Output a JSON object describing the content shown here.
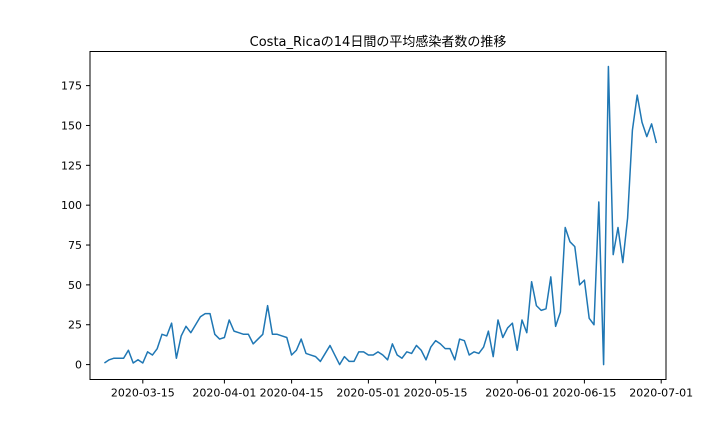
{
  "chart_data": {
    "type": "line",
    "title": "Costa_Ricaの14日間の平均感染者数の推移",
    "xlabel": "",
    "ylabel": "",
    "x_start": "2020-03-07",
    "x_range": [
      "2020-03-04",
      "2020-07-02"
    ],
    "ylim": [
      -9.35,
      196.4
    ],
    "grid": false,
    "legend": "none",
    "x_ticks": [
      {
        "date": "2020-03-15",
        "label": "2020-03-15"
      },
      {
        "date": "2020-04-01",
        "label": "2020-04-01"
      },
      {
        "date": "2020-04-15",
        "label": "2020-04-15"
      },
      {
        "date": "2020-05-01",
        "label": "2020-05-01"
      },
      {
        "date": "2020-05-15",
        "label": "2020-05-15"
      },
      {
        "date": "2020-06-01",
        "label": "2020-06-01"
      },
      {
        "date": "2020-06-15",
        "label": "2020-06-15"
      },
      {
        "date": "2020-07-01",
        "label": "2020-07-01"
      }
    ],
    "y_ticks": [
      {
        "value": 0,
        "label": "0"
      },
      {
        "value": 25,
        "label": "25"
      },
      {
        "value": 50,
        "label": "50"
      },
      {
        "value": 75,
        "label": "75"
      },
      {
        "value": 100,
        "label": "100"
      },
      {
        "value": 125,
        "label": "125"
      },
      {
        "value": 150,
        "label": "150"
      },
      {
        "value": 175,
        "label": "175"
      }
    ],
    "series": [
      {
        "color": "#1f77b4",
        "values": [
          1,
          3,
          4,
          4,
          4,
          9,
          1,
          3,
          1,
          8,
          6,
          10,
          19,
          18,
          26,
          4,
          18,
          24,
          20,
          25,
          30,
          32,
          32,
          19,
          16,
          17,
          28,
          21,
          20,
          19,
          19,
          13,
          16,
          19,
          37,
          19,
          19,
          18,
          17,
          6,
          9,
          16,
          7,
          6,
          5,
          2,
          7,
          12,
          6,
          0,
          5,
          2,
          2,
          8,
          8,
          6,
          6,
          8,
          6,
          3,
          13,
          6,
          4,
          8,
          7,
          12,
          9,
          3,
          11,
          15,
          13,
          10,
          10,
          3,
          16,
          15,
          6,
          8,
          7,
          11,
          21,
          5,
          28,
          17,
          23,
          26,
          9,
          28,
          20,
          52,
          37,
          34,
          35,
          55,
          24,
          33,
          86,
          77,
          74,
          50,
          53,
          29,
          25,
          102,
          0,
          187,
          69,
          86,
          64,
          92,
          147,
          169,
          152,
          143,
          151,
          139
        ]
      }
    ]
  }
}
